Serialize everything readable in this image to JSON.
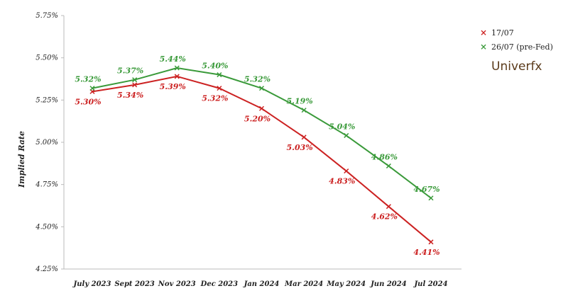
{
  "chart_data": {
    "type": "line",
    "categories": [
      "July 2023",
      "Sept 2023",
      "Nov 2023",
      "Dec 2023",
      "Jan 2024",
      "Mar 2024",
      "May 2024",
      "Jun 2024",
      "Jul 2024"
    ],
    "ylabel": "Implied Rate",
    "xlabel": "",
    "ylim": [
      4.25,
      5.75
    ],
    "yticks": [
      "4.25%",
      "4.50%",
      "4.75%",
      "5.00%",
      "5.25%",
      "5.50%",
      "5.75%"
    ],
    "grid": false,
    "legend_position": "top-right",
    "series": [
      {
        "name": "17/07",
        "color": "#cc2222",
        "values": [
          5.3,
          5.34,
          5.39,
          5.32,
          5.2,
          5.03,
          4.83,
          4.62,
          4.41
        ],
        "labels": [
          "5.30%",
          "5.34%",
          "5.39%",
          "5.32%",
          "5.20%",
          "5.03%",
          "4.83%",
          "4.62%",
          "4.41%"
        ]
      },
      {
        "name": "26/07 (pre-Fed)",
        "color": "#3a9a3a",
        "values": [
          5.32,
          5.37,
          5.44,
          5.4,
          5.32,
          5.19,
          5.04,
          4.86,
          4.67
        ],
        "labels": [
          "5.32%",
          "5.37%",
          "5.44%",
          "5.40%",
          "5.32%",
          "5.19%",
          "5.04%",
          "4.86%",
          "4.67%"
        ]
      }
    ]
  },
  "legend": {
    "marker": "×",
    "items": [
      {
        "label": "17/07",
        "color": "#cc2222"
      },
      {
        "label": "26/07 (pre-Fed)",
        "color": "#3a9a3a"
      }
    ]
  },
  "brand": {
    "text": "Univerfx"
  }
}
